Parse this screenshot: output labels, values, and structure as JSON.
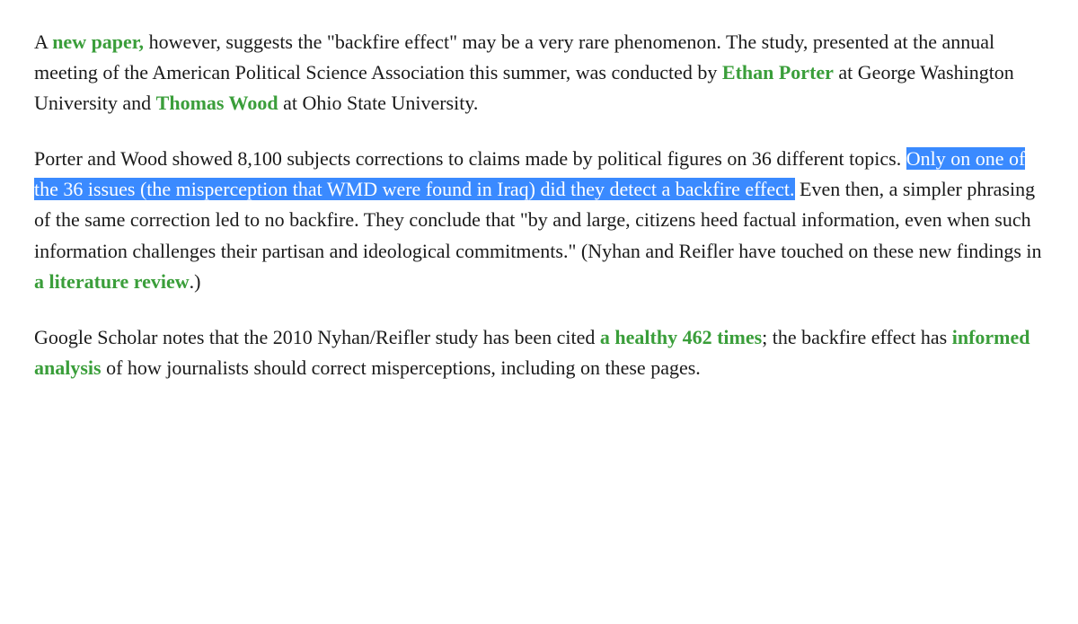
{
  "paragraph1": {
    "t1": "A ",
    "link1": "new paper,",
    "t2": " however, suggests the \"backfire effect\" may be a very rare phenomenon. The study, presented at the annual meeting of the American Political Science Association this summer, was conducted by ",
    "link2": "Ethan Porter",
    "t3": " at George Washington University and ",
    "link3": "Thomas Wood",
    "t4": " at Ohio State University."
  },
  "paragraph2": {
    "t1": "Porter and Wood showed 8,100 subjects corrections to claims made by political figures on 36 different topics. ",
    "highlight": "Only on one of the 36 issues (the misperception that WMD were found in Iraq) did they detect a backfire effect.",
    "t2": " Even then, a simpler phrasing of the same correction led to no backfire. They conclude that \"by and large, citizens heed factual information, even when such information challenges their partisan and ideological commitments.\" (Nyhan and Reifler have touched on these new findings in ",
    "link1": "a literature review",
    "t3": ".)"
  },
  "paragraph3": {
    "t1": "Google Scholar notes that the 2010 Nyhan/Reifler study has been cited ",
    "link1": "a healthy 462 times",
    "t2": "; the backfire effect has ",
    "link2": "informed analysis",
    "t3": " of how journalists should correct misperceptions, including on these pages."
  }
}
